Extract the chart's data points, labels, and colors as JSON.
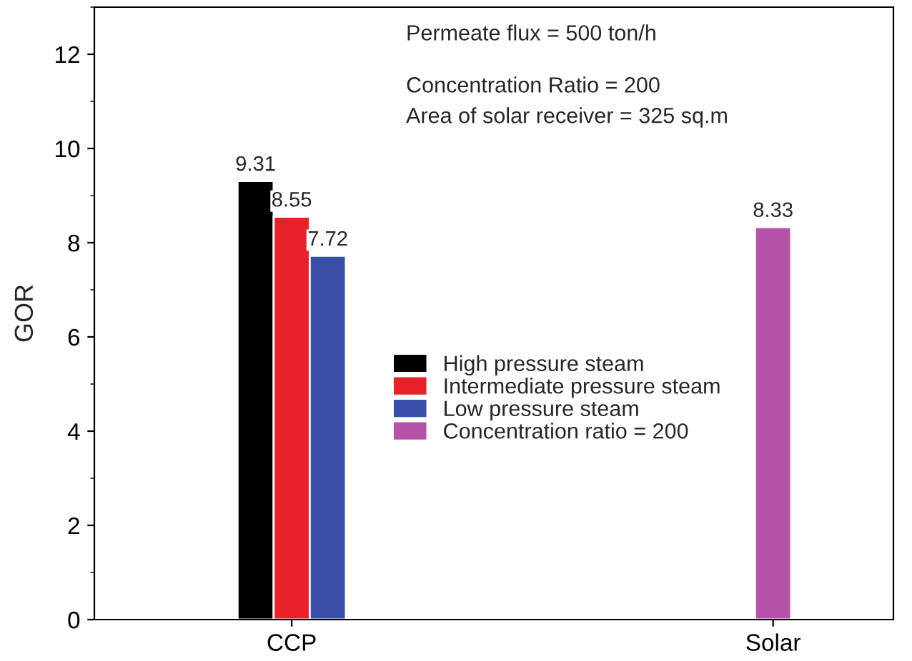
{
  "chart_data": {
    "type": "bar",
    "ylabel": "GOR",
    "categories": [
      "CCP",
      "Solar"
    ],
    "series": [
      {
        "name": "High pressure steam",
        "color": "#000000",
        "values": [
          9.31,
          null
        ]
      },
      {
        "name": "Intermediate pressure steam",
        "color": "#e8212a",
        "values": [
          8.55,
          null
        ]
      },
      {
        "name": "Low pressure steam",
        "color": "#3a4fa8",
        "values": [
          7.72,
          null
        ]
      },
      {
        "name": "Concentration ratio = 200",
        "color": "#b553a8",
        "values": [
          null,
          8.33
        ]
      }
    ],
    "ylim": [
      0,
      13
    ],
    "yticks": [
      0,
      2,
      4,
      6,
      8,
      10,
      12
    ],
    "data_labels": true,
    "legend": "center",
    "grid": false,
    "annotations": [
      "Permeate flux = 500 ton/h",
      "Concentration Ratio = 200",
      "Area of solar receiver = 325 sq.m"
    ]
  }
}
